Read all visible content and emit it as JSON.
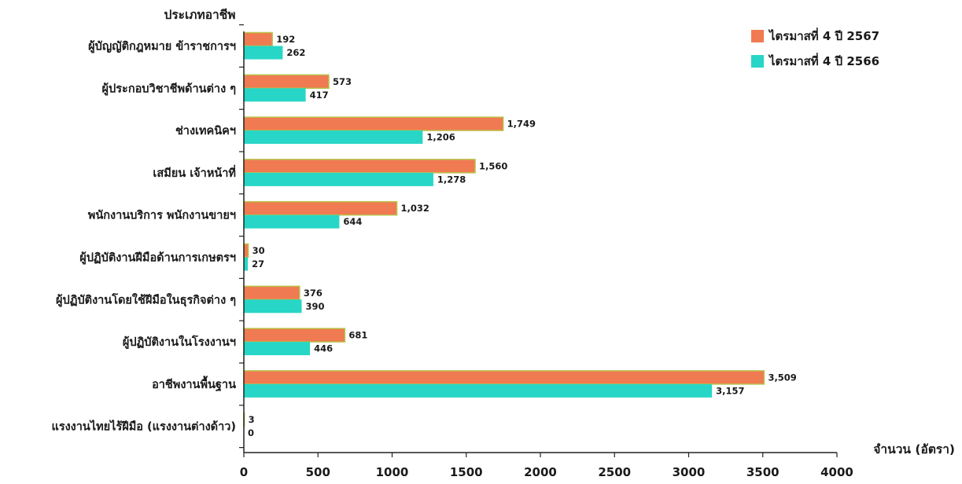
{
  "chart_data": {
    "type": "bar",
    "orientation": "horizontal",
    "ylabel": "ประเภทอาชีพ",
    "xlabel": "จำนวน (อัตรา)",
    "xlim": [
      0,
      4000
    ],
    "x_ticks": [
      "0",
      "500",
      "1000",
      "1500",
      "2000",
      "2500",
      "3000",
      "3500",
      "4000"
    ],
    "categories": [
      "ผู้บัญญัติกฎหมาย ข้าราชการฯ",
      "ผู้ประกอบวิชาชีพด้านต่าง ๆ",
      "ช่างเทคนิคฯ",
      "เสมียน เจ้าหน้าที่",
      "พนักงานบริการ พนักงานขายฯ",
      "ผู้ปฏิบัติงานฝีมือด้านการเกษตรฯ",
      "ผู้ปฏิบัติงานโดยใช้ฝีมือในธุรกิจต่าง ๆ",
      "ผู้ปฏิบัติงานในโรงงานฯ",
      "อาชีพงานพื้นฐาน",
      "แรงงานไทยไร้ฝีมือ (แรงงานต่างด้าว)"
    ],
    "series": [
      {
        "name": "ไตรมาสที่ 4 ปี 2567",
        "color": "#f07a52",
        "values": [
          192,
          573,
          1749,
          1560,
          1032,
          30,
          376,
          681,
          3509,
          3
        ],
        "labels": [
          "192",
          "573",
          "1,749",
          "1,560",
          "1,032",
          "30",
          "376",
          "681",
          "3,509",
          "3"
        ]
      },
      {
        "name": "ไตรมาสที่ 4 ปี 2566",
        "color": "#27d6c6",
        "values": [
          262,
          417,
          1206,
          1278,
          644,
          27,
          390,
          446,
          3157,
          0
        ],
        "labels": [
          "262",
          "417",
          "1,206",
          "1,278",
          "644",
          "27",
          "390",
          "446",
          "3,157",
          "0"
        ]
      }
    ],
    "legend_position": "top-right",
    "grid": false
  }
}
